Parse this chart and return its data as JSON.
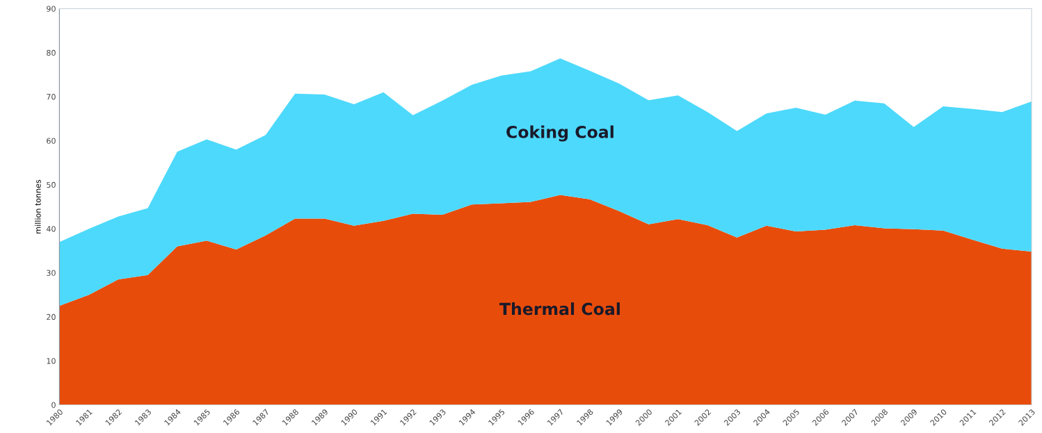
{
  "chart_data": {
    "type": "area",
    "stacked": true,
    "ylabel": "million tonnes",
    "categories": [
      "1980",
      "1981",
      "1982",
      "1983",
      "1984",
      "1985",
      "1986",
      "1987",
      "1988",
      "1989",
      "1990",
      "1991",
      "1992",
      "1993",
      "1994",
      "1995",
      "1996",
      "1997",
      "1998",
      "1999",
      "2000",
      "2001",
      "2002",
      "2003",
      "2004",
      "2005",
      "2006",
      "2007",
      "2008",
      "2009",
      "2010",
      "2011",
      "2012",
      "2013"
    ],
    "series": [
      {
        "name": "Thermal Coal",
        "color": "#e84c0b",
        "values": [
          22.5,
          25,
          28.5,
          29.5,
          36,
          37.3,
          35.3,
          38.5,
          42.3,
          42.3,
          40.7,
          41.8,
          43.4,
          43.2,
          45.5,
          45.8,
          46.1,
          47.7,
          46.7,
          44,
          41,
          42.2,
          40.8,
          38,
          40.7,
          39.4,
          39.8,
          40.8,
          40.1,
          39.9,
          39.6,
          37.5,
          35.5,
          34.8
        ]
      },
      {
        "name": "Coking Coal",
        "color": "#4dd9fb",
        "values": [
          14.5,
          15,
          14.3,
          15.2,
          21.5,
          23,
          22.7,
          22.8,
          28.4,
          28.2,
          27.6,
          29.2,
          22.4,
          25.9,
          27.2,
          29,
          29.7,
          31,
          29.2,
          29,
          28.2,
          28.1,
          25.7,
          24.2,
          25.5,
          28.1,
          26.1,
          28.3,
          28.4,
          23.2,
          28.2,
          29.7,
          31,
          34.1
        ]
      }
    ],
    "ylim": [
      0,
      90
    ],
    "yticks": [
      0,
      10,
      20,
      30,
      40,
      50,
      60,
      70,
      80,
      90
    ],
    "grid": false,
    "legend": false
  }
}
